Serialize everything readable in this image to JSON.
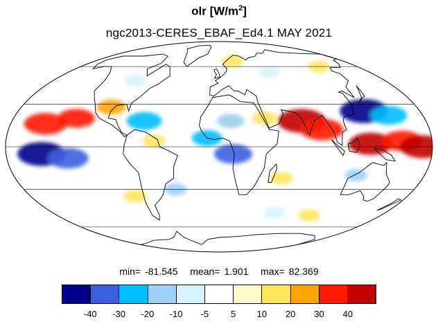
{
  "title": {
    "variable": "olr",
    "units_prefix": "[W/m",
    "units_sup": "2",
    "units_suffix": "]",
    "subtitle": "ngc2013-CERES_EBAF_Ed4.1  MAY 2021"
  },
  "map": {
    "projection": "mollweide",
    "center_longitude": 0,
    "gridlines": true,
    "coastlines": true
  },
  "stats": {
    "min_label": "min=",
    "min": "-81.545",
    "mean_label": "mean=",
    "mean": "1.901",
    "max_label": "max=",
    "max": "82.369"
  },
  "colorbar": {
    "colors": [
      "#00008b",
      "#3a5fe0",
      "#00bfff",
      "#a0d0f8",
      "#d6f3fc",
      "#ffffff",
      "#fffbc8",
      "#ffe55a",
      "#ffa500",
      "#ff1a00",
      "#c20000"
    ],
    "labels": [
      "-40",
      "-30",
      "-20",
      "-10",
      "-5",
      "5",
      "10",
      "20",
      "30",
      "40"
    ]
  },
  "chart_data": {
    "type": "heatmap",
    "title": "olr [W/m2]",
    "subtitle": "ngc2013-CERES_EBAF_Ed4.1  MAY 2021",
    "levels": [
      -40,
      -30,
      -20,
      -10,
      -5,
      5,
      10,
      20,
      30,
      40
    ],
    "stats": {
      "min": -81.545,
      "mean": 1.901,
      "max": 82.369
    },
    "anomaly_regions": [
      {
        "lon": 72,
        "lat": 18,
        "value": 45
      },
      {
        "lon": 88,
        "lat": 12,
        "value": 38
      },
      {
        "lon": 128,
        "lat": 2,
        "value": 40
      },
      {
        "lon": 155,
        "lat": 4,
        "value": 35
      },
      {
        "lon": 172,
        "lat": 0,
        "value": 42
      },
      {
        "lon": -150,
        "lat": 16,
        "value": 38
      },
      {
        "lon": -125,
        "lat": 20,
        "value": 30
      },
      {
        "lon": -98,
        "lat": 28,
        "value": 20
      },
      {
        "lon": -55,
        "lat": 4,
        "value": 12
      },
      {
        "lon": 12,
        "lat": 18,
        "value": 12
      },
      {
        "lon": 40,
        "lat": 20,
        "value": 14
      },
      {
        "lon": 55,
        "lat": -22,
        "value": 12
      },
      {
        "lon": -80,
        "lat": -35,
        "value": 12
      },
      {
        "lon": 100,
        "lat": -50,
        "value": 10
      },
      {
        "lon": 20,
        "lat": 65,
        "value": 10
      },
      {
        "lon": 130,
        "lat": 60,
        "value": 10
      },
      {
        "lon": 130,
        "lat": 25,
        "value": -45
      },
      {
        "lon": 150,
        "lat": 22,
        "value": -30
      },
      {
        "lon": -150,
        "lat": -5,
        "value": -45
      },
      {
        "lon": -128,
        "lat": -8,
        "value": -35
      },
      {
        "lon": -65,
        "lat": 18,
        "value": -28
      },
      {
        "lon": -10,
        "lat": 6,
        "value": -22
      },
      {
        "lon": 12,
        "lat": -5,
        "value": -32
      },
      {
        "lon": 10,
        "lat": 18,
        "value": -18
      },
      {
        "lon": 120,
        "lat": -20,
        "value": -12
      },
      {
        "lon": -40,
        "lat": -30,
        "value": -12
      },
      {
        "lon": 60,
        "lat": -48,
        "value": -10
      },
      {
        "lon": -90,
        "lat": 48,
        "value": -10
      },
      {
        "lon": 60,
        "lat": 55,
        "value": -10
      }
    ]
  }
}
